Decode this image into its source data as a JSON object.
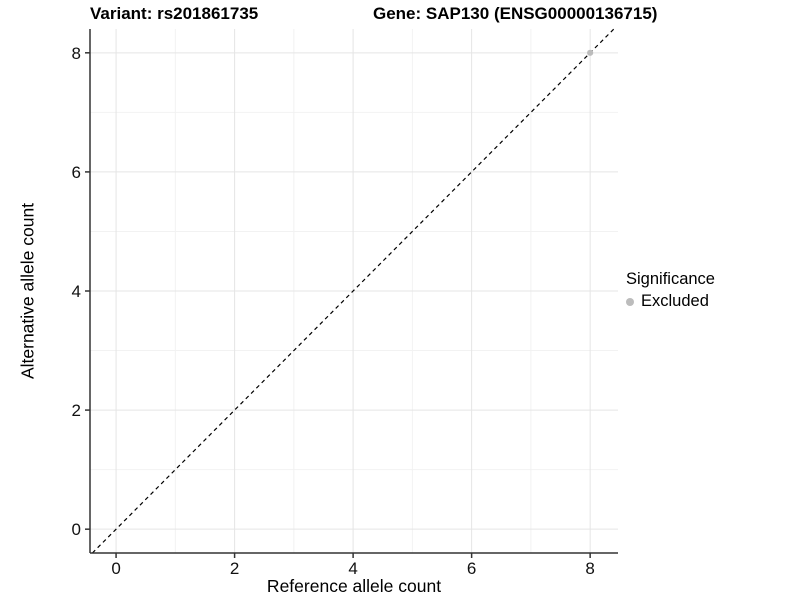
{
  "header": {
    "title_left": "Variant: rs201861735",
    "title_right": "Gene: SAP130 (ENSG00000136715)"
  },
  "chart_data": {
    "type": "scatter",
    "title_left": "Variant: rs201861735",
    "title_right": "Gene: SAP130 (ENSG00000136715)",
    "xlabel": "Reference allele count",
    "ylabel": "Alternative allele count",
    "xlim": [
      -0.44,
      8.47
    ],
    "ylim": [
      -0.4,
      8.4
    ],
    "xticks": [
      0,
      2,
      4,
      6,
      8
    ],
    "yticks": [
      0,
      2,
      4,
      6,
      8
    ],
    "minor_xticks": [
      1,
      3,
      5,
      7
    ],
    "minor_yticks": [
      1,
      3,
      5,
      7
    ],
    "grid": "major+minor",
    "reference_line": {
      "equation": "y = x",
      "style": "dashed",
      "color": "#000000"
    },
    "series": [
      {
        "name": "Excluded",
        "color": "#bcbcbc",
        "points": [
          [
            8,
            8
          ]
        ]
      }
    ],
    "legend": {
      "title": "Significance",
      "position": "right",
      "entries": [
        {
          "label": "Excluded",
          "color": "#bcbcbc",
          "marker": "circle"
        }
      ]
    },
    "style": {
      "background": "#ffffff",
      "major_grid_color": "#e5e5e5",
      "minor_grid_color": "#f2f2f2",
      "axis_line_color": "#333333",
      "tick_color": "#333333",
      "tick_label_color": "#111111"
    }
  }
}
